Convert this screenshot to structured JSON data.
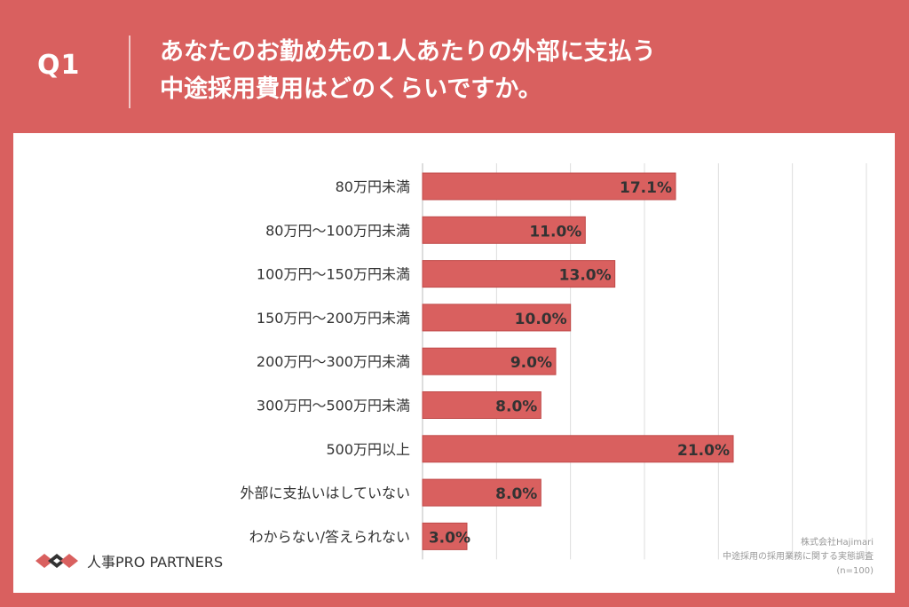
{
  "header": {
    "question_label": "Q1",
    "title_line1": "あなたのお勤め先の1人あたりの外部に支払う",
    "title_line2": "中途採用費用はどのくらいですか。"
  },
  "colors": {
    "accent": "#d9605f",
    "bar": "#d9605f",
    "bar_stroke": "#c04a49",
    "grid": "#dddddd",
    "text": "#333333"
  },
  "chart_data": {
    "type": "bar",
    "orientation": "horizontal",
    "categories": [
      "80万円未満",
      "80万円～100万円未満",
      "100万円～150万円未満",
      "150万円～200万円未満",
      "200万円～300万円未満",
      "300万円～500万円未満",
      "500万円以上",
      "外部に支払いはしていない",
      "わからない/答えられない"
    ],
    "values": [
      17.1,
      11.0,
      13.0,
      10.0,
      9.0,
      8.0,
      21.0,
      8.0,
      3.0
    ],
    "value_labels": [
      "17.1%",
      "11.0%",
      "13.0%",
      "10.0%",
      "9.0%",
      "8.0%",
      "21.0%",
      "8.0%",
      "3.0%"
    ],
    "xlim": [
      0,
      30
    ],
    "grid": true,
    "legend": "none"
  },
  "logo": {
    "text": "人事PRO PARTNERS"
  },
  "source": {
    "line1": "株式会社Hajimari",
    "line2": "中途採用の採用業務に関する実態調査",
    "line3": "(n=100)"
  }
}
